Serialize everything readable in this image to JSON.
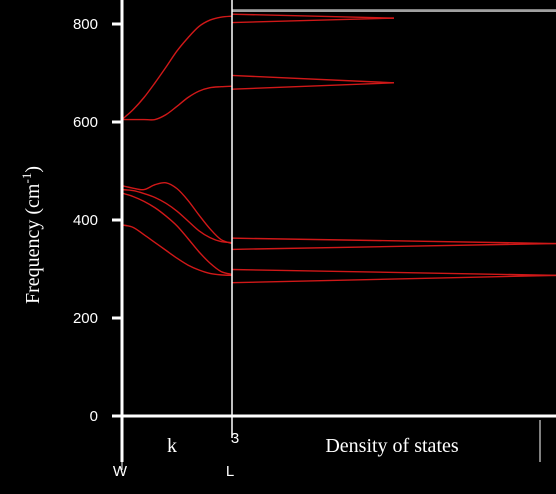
{
  "chart_data": {
    "type": "line",
    "ylabel": "Frequency (cm",
    "ylabel_sup": "-1",
    "ylabel_close": ")",
    "ylim": [
      0,
      830
    ],
    "yticks": [
      0,
      200,
      400,
      600,
      800
    ],
    "k_axis_label": "k",
    "k_points": [
      "W",
      "L"
    ],
    "dos_label": "Density of states",
    "dos_tick": "3",
    "colors": {
      "background": "#000000",
      "axis": "#ffffff",
      "curve": "#d01818"
    },
    "dispersion": {
      "x": [
        0,
        0.1,
        0.2,
        0.3,
        0.4,
        0.5,
        0.6,
        0.7,
        0.8,
        0.9,
        1.0
      ],
      "series": [
        {
          "values": [
            605,
            625,
            650,
            680,
            712,
            745,
            772,
            795,
            808,
            814,
            816
          ]
        },
        {
          "values": [
            605,
            605,
            605,
            605,
            615,
            632,
            650,
            663,
            670,
            672,
            673
          ]
        },
        {
          "values": [
            470,
            465,
            462,
            472,
            476,
            464,
            440,
            410,
            382,
            360,
            352
          ]
        },
        {
          "values": [
            462,
            460,
            454,
            446,
            434,
            418,
            398,
            378,
            364,
            356,
            354
          ]
        },
        {
          "values": [
            455,
            448,
            438,
            425,
            408,
            388,
            362,
            335,
            312,
            295,
            289
          ]
        },
        {
          "values": [
            390,
            385,
            370,
            354,
            338,
            322,
            308,
            298,
            291,
            288,
            287
          ]
        }
      ]
    },
    "dos": {
      "series": [
        {
          "y_start": 826,
          "y_end": 826,
          "extent": 1.0
        },
        {
          "y_start": 820,
          "y_end": 812,
          "extent": 0.5
        },
        {
          "y_start": 803,
          "y_end": 812,
          "extent": 0.5
        },
        {
          "y_start": 695,
          "y_end": 680,
          "extent": 0.5
        },
        {
          "y_start": 667,
          "y_end": 680,
          "extent": 0.5
        },
        {
          "y_start": 363,
          "y_end": 352,
          "extent": 1.0
        },
        {
          "y_start": 340,
          "y_end": 352,
          "extent": 1.0
        },
        {
          "y_start": 299,
          "y_end": 287,
          "extent": 1.0
        },
        {
          "y_start": 272,
          "y_end": 287,
          "extent": 1.0
        }
      ]
    }
  }
}
